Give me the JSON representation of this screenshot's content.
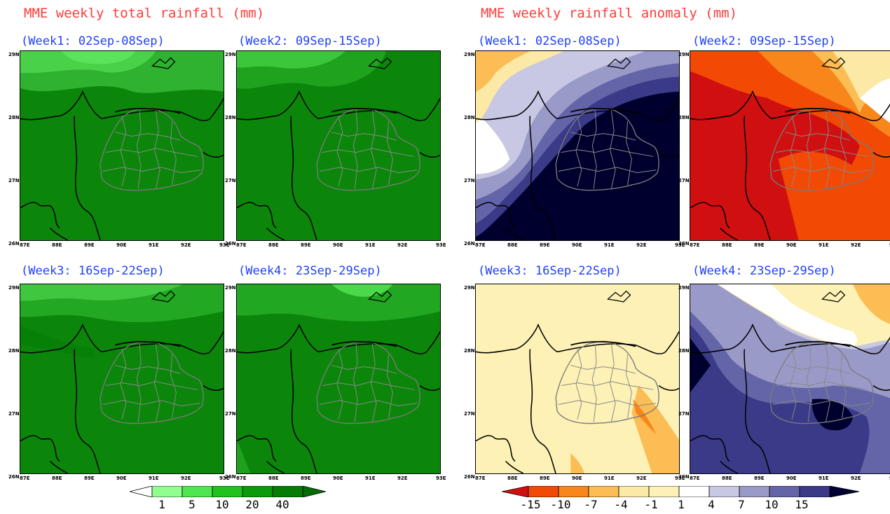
{
  "left_title": "MME weekly total rainfall (mm)",
  "right_title": "MME weekly rainfall anomaly (mm)",
  "weeks": [
    "(Week1: 02Sep-08Sep)",
    "(Week2: 09Sep-15Sep)",
    "(Week3: 16Sep-22Sep)",
    "(Week4: 23Sep-29Sep)"
  ],
  "lat_labels": [
    "29N",
    "28N",
    "27N",
    "26N"
  ],
  "lon_labels": [
    "87E",
    "88E",
    "89E",
    "90E",
    "91E",
    "92E",
    "93E"
  ],
  "total_colorbar": {
    "labels": [
      "1",
      "5",
      "10",
      "20",
      "40"
    ],
    "colors": [
      "#ffffff",
      "#90ff90",
      "#50e650",
      "#1fc21f",
      "#0a9a0a",
      "#057d05",
      "#046c04"
    ]
  },
  "anomaly_colorbar": {
    "labels": [
      "-15",
      "-10",
      "-7",
      "-4",
      "-1",
      "1",
      "4",
      "7",
      "10",
      "15"
    ],
    "colors": [
      "#d01010",
      "#f24a04",
      "#f8861a",
      "#fbbd54",
      "#fde9a6",
      "#fdf1b6",
      "#ffffff",
      "#c8c8e4",
      "#9a9ac8",
      "#6464a8",
      "#3a3a88",
      "#000033"
    ]
  },
  "map_layers": {
    "total_week1": "green",
    "total_week2": "green",
    "total_week3": "green",
    "total_week4": "green",
    "anomaly_week1": "blue-negative-wet",
    "anomaly_week2": "red-dry",
    "anomaly_week3": "near-normal",
    "anomaly_week4": "blue-wet"
  }
}
